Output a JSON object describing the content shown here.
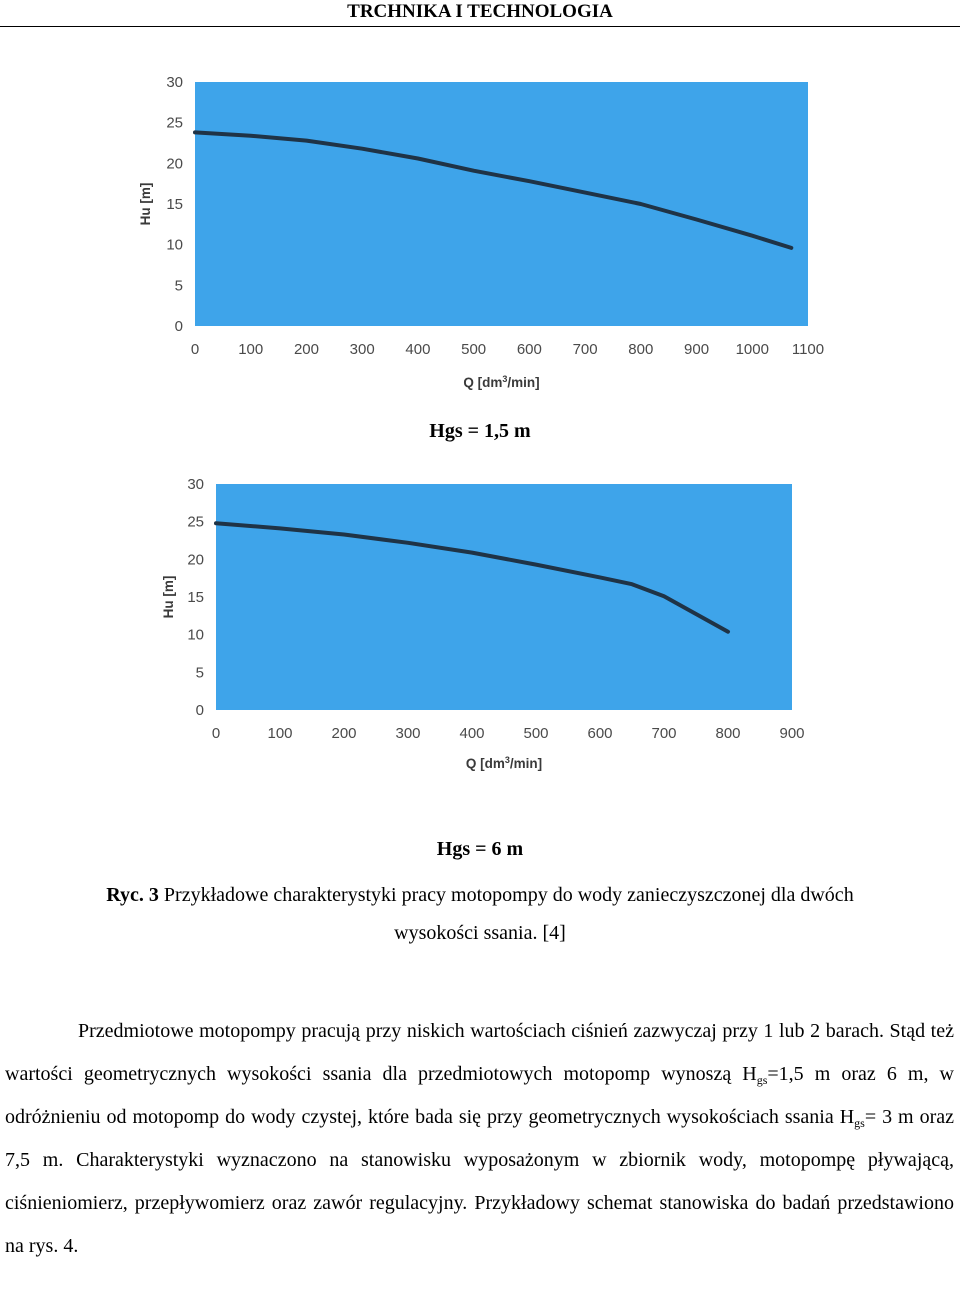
{
  "header": {
    "title": "TRCHNIKA I TECHNOLOGIA"
  },
  "chart_data": [
    {
      "type": "line",
      "title": "Hgs = 1,5 m",
      "xlabel": "Q [dm3/min]",
      "ylabel": "Hu [m]",
      "xlim": [
        0,
        1100
      ],
      "ylim": [
        0,
        30
      ],
      "xticks": [
        "0",
        "100",
        "200",
        "300",
        "400",
        "500",
        "600",
        "700",
        "800",
        "900",
        "1000",
        "1100"
      ],
      "yticks": [
        "0",
        "5",
        "10",
        "15",
        "20",
        "25",
        "30"
      ],
      "grid": false,
      "background_color": "#3ea4ea",
      "line_color": "#1f3346",
      "series": [
        {
          "x": [
            0,
            100,
            200,
            300,
            400,
            500,
            600,
            700,
            800,
            900,
            1000,
            1070
          ],
          "y": [
            23.8,
            23.4,
            22.8,
            21.8,
            20.6,
            19.1,
            17.8,
            16.4,
            15.0,
            13.1,
            11.1,
            9.6
          ]
        }
      ]
    },
    {
      "type": "line",
      "title": "Hgs = 6 m",
      "xlabel": "Q [dm3/min]",
      "ylabel": "Hu [m]",
      "xlim": [
        0,
        900
      ],
      "ylim": [
        0,
        30
      ],
      "xticks": [
        "0",
        "100",
        "200",
        "300",
        "400",
        "500",
        "600",
        "700",
        "800",
        "900"
      ],
      "yticks": [
        "0",
        "5",
        "10",
        "15",
        "20",
        "25",
        "30"
      ],
      "grid": false,
      "background_color": "#3ea4ea",
      "line_color": "#1f3346",
      "series": [
        {
          "x": [
            0,
            100,
            200,
            300,
            400,
            500,
            600,
            650,
            700,
            800
          ],
          "y": [
            24.8,
            24.1,
            23.3,
            22.2,
            20.9,
            19.3,
            17.6,
            16.7,
            15.1,
            10.4
          ]
        }
      ]
    }
  ],
  "captions": {
    "hgs1": "Hgs = 1,5 m",
    "hgs2": "Hgs = 6 m",
    "figure_label": "Ryc. 3",
    "figure_text_line1": "Przykładowe charakterystyki pracy motopompy do wody zanieczyszczonej dla dwóch",
    "figure_text_line2": "wysokości ssania. [4]"
  },
  "paragraph": {
    "part1": "Przedmiotowe motopompy pracują przy niskich wartościach ciśnień zazwyczaj przy 1 lub 2 barach. Stąd też wartości geometrycznych wysokości ssania dla przedmiotowych motopomp wynoszą H",
    "sub1": "gs",
    "part2": "=1,5 m oraz 6 m, w odróżnieniu od motopomp do wody czystej, które bada się przy geometrycznych wysokościach ssania H",
    "sub2": "gs",
    "part3": "= 3 m oraz 7,5 m. Charakterystyki wyznaczono na stanowisku wyposażonym w zbiornik wody, motopompę pływającą, ciśnieniomierz, przepływomierz oraz zawór regulacyjny. Przykładowy schemat stanowiska do badań przedstawiono na rys. 4."
  }
}
